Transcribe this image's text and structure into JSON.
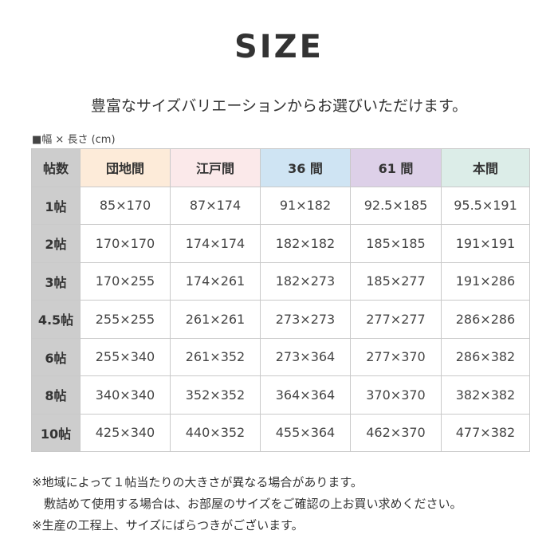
{
  "title": "SIZE",
  "subtitle": "豊富なサイズバリエーションからお選びいただけます。",
  "unit_label": "■幅 × 長さ (cm)",
  "table": {
    "headers": [
      {
        "label": "帖数",
        "color": "#cdcdcd"
      },
      {
        "label": "団地間",
        "color": "#fdebd9"
      },
      {
        "label": "江戸間",
        "color": "#fbe9ea"
      },
      {
        "label": "36 間",
        "color": "#cfe4f3"
      },
      {
        "label": "61 間",
        "color": "#ddd0e8"
      },
      {
        "label": "本間",
        "color": "#dcede8"
      }
    ],
    "rows": [
      [
        "1帖",
        "85×170",
        "87×174",
        "91×182",
        "92.5×185",
        "95.5×191"
      ],
      [
        "2帖",
        "170×170",
        "174×174",
        "182×182",
        "185×185",
        "191×191"
      ],
      [
        "3帖",
        "170×255",
        "174×261",
        "182×273",
        "185×277",
        "191×286"
      ],
      [
        "4.5帖",
        "255×255",
        "261×261",
        "273×273",
        "277×277",
        "286×286"
      ],
      [
        "6帖",
        "255×340",
        "261×352",
        "273×364",
        "277×370",
        "286×382"
      ],
      [
        "8帖",
        "340×340",
        "352×352",
        "364×364",
        "370×370",
        "382×382"
      ],
      [
        "10帖",
        "425×340",
        "440×352",
        "455×364",
        "462×370",
        "477×382"
      ]
    ]
  },
  "notes": [
    "※地域によって１帖当たりの大きさが異なる場合があります。",
    "　敷詰めて使用する場合は、お部屋のサイズをご確認の上お買い求めください。",
    "※生産の工程上、サイズにばらつきがございます。"
  ]
}
